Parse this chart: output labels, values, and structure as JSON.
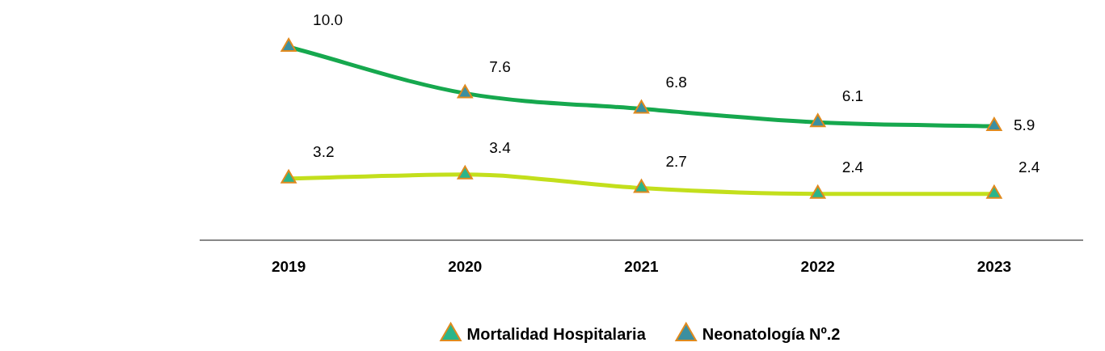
{
  "chart_data": {
    "type": "line",
    "categories": [
      "2019",
      "2020",
      "2021",
      "2022",
      "2023"
    ],
    "series": [
      {
        "name": "Mortalidad Hospitalaria",
        "color": "#c3df1c",
        "values": [
          3.2,
          3.4,
          2.7,
          2.4,
          2.4
        ],
        "value_labels": [
          "3.2",
          "3.4",
          "2.7",
          "2.4",
          "2.4"
        ]
      },
      {
        "name": "Neonatología Nº.2",
        "color": "#16a84e",
        "values": [
          10.0,
          7.6,
          6.8,
          6.1,
          5.9
        ],
        "value_labels": [
          "10.0",
          "7.6",
          "6.8",
          "6.1",
          "5.9"
        ]
      }
    ],
    "marker": "triangle",
    "legend": "bottom",
    "grid": false
  }
}
